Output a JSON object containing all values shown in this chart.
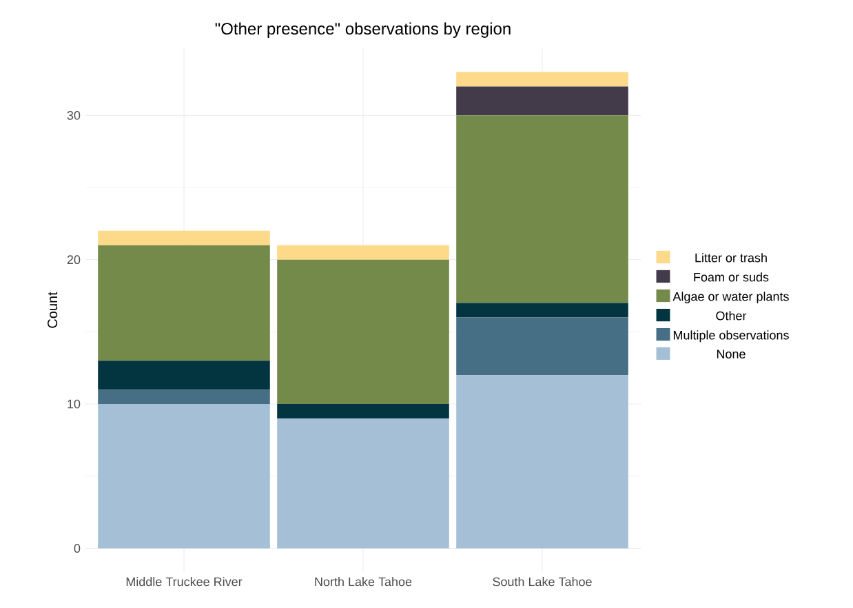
{
  "chart_data": {
    "type": "bar",
    "stacked": true,
    "title": "\"Other presence\" observations by region",
    "ylabel": "Count",
    "categories": [
      "Middle Truckee River",
      "North Lake Tahoe",
      "South Lake Tahoe"
    ],
    "series": [
      {
        "name": "None",
        "color": "#a5bfd6",
        "values": [
          10,
          9,
          12
        ]
      },
      {
        "name": "Multiple observations",
        "color": "#466f85",
        "values": [
          1,
          0,
          4
        ]
      },
      {
        "name": "Other",
        "color": "#023540",
        "values": [
          2,
          1,
          1
        ]
      },
      {
        "name": "Algae or water plants",
        "color": "#738a4a",
        "values": [
          8,
          10,
          13
        ]
      },
      {
        "name": "Foam or suds",
        "color": "#433a4a",
        "values": [
          0,
          0,
          2
        ]
      },
      {
        "name": "Litter or trash",
        "color": "#fdd98a",
        "values": [
          1,
          1,
          1
        ]
      }
    ],
    "ylim": [
      -1.65,
      34.65
    ],
    "yticks": [
      0,
      {
        "value": 5,
        "label": null
      },
      10,
      {
        "value": 15,
        "label": null
      },
      20,
      {
        "value": 25,
        "label": null
      },
      30
    ],
    "grid": true,
    "legend": "right"
  }
}
